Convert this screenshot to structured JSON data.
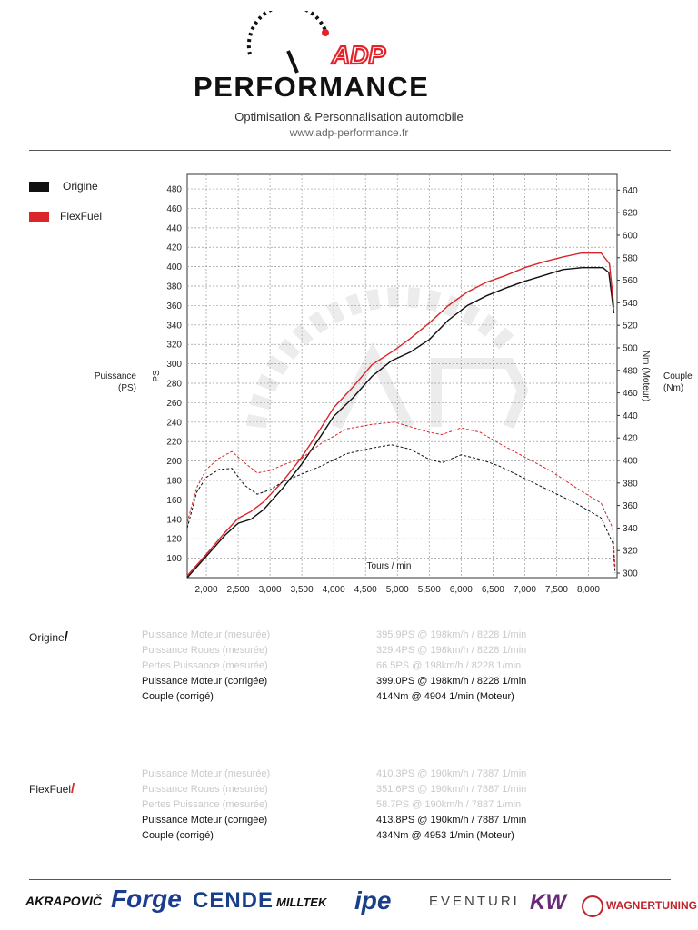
{
  "header": {
    "brand_top": "ADP",
    "brand_bottom": "PERFORMANCE",
    "tagline": "Optimisation & Personnalisation automobile",
    "url": "www.adp-performance.fr",
    "accent_color": "#e4222a"
  },
  "legend": [
    {
      "label": "Origine",
      "color": "#111111"
    },
    {
      "label": "FlexFuel",
      "color": "#d9262b"
    }
  ],
  "side_labels": {
    "left": "Puissance (PS)",
    "right": "Couple (Nm)"
  },
  "chart_data": {
    "type": "line",
    "xlabel": "Tours / min",
    "ylabel_left": "PS",
    "ylabel_right": "Nm (Moteur)",
    "xlim": [
      1700,
      8450
    ],
    "ylim_left": [
      80,
      495
    ],
    "ylim_right": [
      296,
      654
    ],
    "x_ticks": [
      2000,
      2500,
      3000,
      3500,
      4000,
      4500,
      5000,
      5500,
      6000,
      6500,
      7000,
      7500,
      8000
    ],
    "x_tick_labels": [
      "2,000",
      "2,500",
      "3,000",
      "3,500",
      "4,000",
      "4,500",
      "5,000",
      "5,500",
      "6,000",
      "6,500",
      "7,000",
      "7,500",
      "8,000"
    ],
    "y_left_ticks": [
      100,
      120,
      140,
      160,
      180,
      200,
      220,
      240,
      260,
      280,
      300,
      320,
      340,
      360,
      380,
      400,
      420,
      440,
      460,
      480
    ],
    "y_right_ticks": [
      300,
      320,
      340,
      360,
      380,
      400,
      420,
      440,
      460,
      480,
      500,
      520,
      540,
      560,
      580,
      600,
      620,
      640
    ],
    "grid": true,
    "series": [
      {
        "name": "Origine",
        "metric": "Puissance",
        "axis": "left",
        "style": "solid",
        "color": "#111111",
        "points": [
          [
            1700,
            80
          ],
          [
            2000,
            102
          ],
          [
            2300,
            124
          ],
          [
            2500,
            136
          ],
          [
            2700,
            140
          ],
          [
            2900,
            150
          ],
          [
            3200,
            172
          ],
          [
            3500,
            197
          ],
          [
            3800,
            226
          ],
          [
            4000,
            246
          ],
          [
            4300,
            265
          ],
          [
            4600,
            287
          ],
          [
            4904,
            303
          ],
          [
            5200,
            312
          ],
          [
            5500,
            325
          ],
          [
            5800,
            345
          ],
          [
            6100,
            360
          ],
          [
            6400,
            370
          ],
          [
            6700,
            378
          ],
          [
            7000,
            385
          ],
          [
            7300,
            391
          ],
          [
            7600,
            397
          ],
          [
            7900,
            399
          ],
          [
            8228,
            399
          ],
          [
            8320,
            394
          ],
          [
            8400,
            352
          ]
        ]
      },
      {
        "name": "FlexFuel",
        "metric": "Puissance",
        "axis": "left",
        "style": "solid",
        "color": "#d9262b",
        "points": [
          [
            1700,
            82
          ],
          [
            2000,
            104
          ],
          [
            2300,
            127
          ],
          [
            2500,
            141
          ],
          [
            2700,
            148
          ],
          [
            2900,
            158
          ],
          [
            3200,
            179
          ],
          [
            3500,
            204
          ],
          [
            3800,
            234
          ],
          [
            4000,
            255
          ],
          [
            4300,
            276
          ],
          [
            4600,
            299
          ],
          [
            4953,
            314
          ],
          [
            5200,
            326
          ],
          [
            5500,
            342
          ],
          [
            5800,
            360
          ],
          [
            6100,
            374
          ],
          [
            6400,
            384
          ],
          [
            6700,
            391
          ],
          [
            7000,
            399
          ],
          [
            7300,
            405
          ],
          [
            7600,
            410
          ],
          [
            7887,
            414
          ],
          [
            8200,
            414
          ],
          [
            8330,
            403
          ],
          [
            8400,
            358
          ]
        ]
      },
      {
        "name": "Origine",
        "metric": "Couple",
        "axis": "right",
        "style": "dashed",
        "color": "#111111",
        "points": [
          [
            1700,
            340
          ],
          [
            1850,
            372
          ],
          [
            2000,
            385
          ],
          [
            2200,
            392
          ],
          [
            2400,
            393
          ],
          [
            2600,
            378
          ],
          [
            2800,
            370
          ],
          [
            3000,
            374
          ],
          [
            3200,
            381
          ],
          [
            3500,
            388
          ],
          [
            3800,
            395
          ],
          [
            4200,
            406
          ],
          [
            4600,
            411
          ],
          [
            4904,
            414
          ],
          [
            5200,
            410
          ],
          [
            5500,
            401
          ],
          [
            5700,
            398
          ],
          [
            6000,
            405
          ],
          [
            6300,
            401
          ],
          [
            6600,
            395
          ],
          [
            7000,
            384
          ],
          [
            7400,
            373
          ],
          [
            7800,
            362
          ],
          [
            8200,
            349
          ],
          [
            8380,
            327
          ],
          [
            8420,
            300
          ]
        ]
      },
      {
        "name": "FlexFuel",
        "metric": "Couple",
        "axis": "right",
        "style": "dashed",
        "color": "#d9262b",
        "points": [
          [
            1700,
            345
          ],
          [
            1850,
            376
          ],
          [
            2000,
            392
          ],
          [
            2200,
            402
          ],
          [
            2400,
            408
          ],
          [
            2600,
            398
          ],
          [
            2800,
            389
          ],
          [
            3000,
            391
          ],
          [
            3200,
            396
          ],
          [
            3500,
            402
          ],
          [
            3800,
            415
          ],
          [
            4200,
            428
          ],
          [
            4600,
            432
          ],
          [
            4953,
            434
          ],
          [
            5200,
            430
          ],
          [
            5500,
            425
          ],
          [
            5700,
            423
          ],
          [
            6000,
            429
          ],
          [
            6300,
            425
          ],
          [
            6600,
            415
          ],
          [
            7000,
            403
          ],
          [
            7400,
            391
          ],
          [
            7800,
            376
          ],
          [
            8200,
            362
          ],
          [
            8380,
            340
          ],
          [
            8420,
            305
          ]
        ]
      }
    ]
  },
  "results": {
    "origine": {
      "title": "Origine",
      "rows": [
        {
          "label": "Puissance Moteur (mesurée)",
          "value": "395.9PS @ 198km/h / 8228 1/min",
          "faded": true
        },
        {
          "label": "Puissance Roues (mesurée)",
          "value": "329.4PS @ 198km/h / 8228 1/min",
          "faded": true
        },
        {
          "label": "Pertes Puissance (mesurée)",
          "value": "66.5PS @ 198km/h / 8228 1/min",
          "faded": true
        },
        {
          "label": "Puissance Moteur (corrigée)",
          "value": "399.0PS @ 198km/h / 8228 1/min",
          "faded": false
        },
        {
          "label": "Couple (corrigé)",
          "value": "414Nm @ 4904 1/min (Moteur)",
          "faded": false
        }
      ]
    },
    "flexfuel": {
      "title": "FlexFuel",
      "rows": [
        {
          "label": "Puissance Moteur (mesurée)",
          "value": "410.3PS @ 190km/h / 7887 1/min",
          "faded": true
        },
        {
          "label": "Puissance Roues (mesurée)",
          "value": "351.6PS @ 190km/h / 7887 1/min",
          "faded": true
        },
        {
          "label": "Pertes Puissance (mesurée)",
          "value": "58.7PS @ 190km/h / 7887 1/min",
          "faded": true
        },
        {
          "label": "Puissance Moteur (corrigée)",
          "value": "413.8PS @ 190km/h / 7887 1/min",
          "faded": false
        },
        {
          "label": "Couple (corrigé)",
          "value": "434Nm @ 4953 1/min (Moteur)",
          "faded": false
        }
      ]
    }
  },
  "partners": [
    "AKRAPOVIČ",
    "Forge",
    "CENDE",
    "MILLTEK",
    "ipe",
    "EVENTURI",
    "KW",
    "WAGNERTUNING"
  ]
}
